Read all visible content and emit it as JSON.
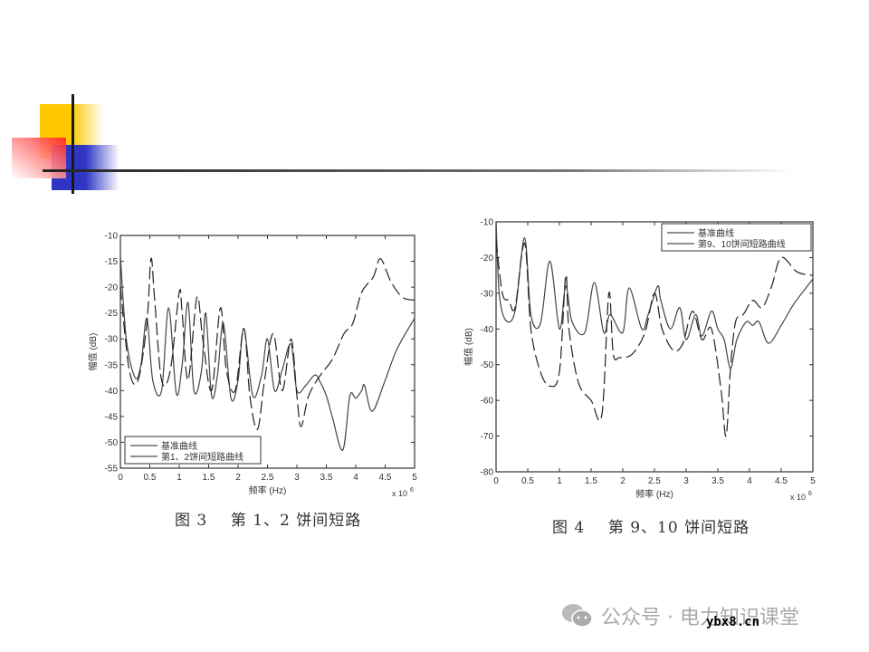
{
  "slide": {
    "decoration": {
      "yellow": "#ffcc00",
      "red": "#ff3333",
      "blue": "#3333cc",
      "line": "#333333"
    }
  },
  "figures": [
    {
      "caption": "图 3    第 1、2 饼间短路"
    },
    {
      "caption": "图 4    第 9、10 饼间短路"
    }
  ],
  "footer": {
    "account": "公众号 · 电力知识课堂",
    "watermark": "ybx8.cn"
  },
  "chart_data": [
    {
      "type": "line",
      "title": "",
      "xlabel": "频率 (Hz)",
      "x_multiplier": "x 10^6",
      "ylabel": "幅值 (dB)",
      "xlim": [
        0,
        5
      ],
      "ylim": [
        -55,
        -10
      ],
      "xticks": [
        "0",
        "0.5",
        "1",
        "1.5",
        "2",
        "2.5",
        "3",
        "3.5",
        "4",
        "4.5",
        "5"
      ],
      "yticks": [
        "-10",
        "-15",
        "-20",
        "-25",
        "-30",
        "-35",
        "-40",
        "-45",
        "-50",
        "-55"
      ],
      "grid": false,
      "legend_position": "lower left",
      "series": [
        {
          "name": "基准曲线",
          "style": "solid",
          "x": [
            0,
            0.1,
            0.25,
            0.35,
            0.45,
            0.55,
            0.7,
            0.82,
            0.95,
            1.05,
            1.15,
            1.25,
            1.38,
            1.45,
            1.55,
            1.65,
            1.75,
            1.88,
            2.0,
            2.1,
            2.25,
            2.4,
            2.5,
            2.62,
            2.75,
            2.9,
            3.0,
            3.15,
            3.3,
            3.38,
            3.5,
            3.6,
            3.78,
            3.9,
            4.0,
            4.1,
            4.15,
            4.28,
            4.5,
            4.7,
            5.0
          ],
          "y": [
            -14,
            -30,
            -37.5,
            -35,
            -26,
            -38,
            -40,
            -24,
            -40.5,
            -35,
            -23,
            -40,
            -36,
            -25,
            -41,
            -37,
            -27,
            -41.5,
            -38,
            -28,
            -41,
            -37,
            -30,
            -40,
            -36,
            -31,
            -40,
            -39,
            -37,
            -38,
            -41,
            -45,
            -51.5,
            -41,
            -41.5,
            -40,
            -39,
            -44,
            -38,
            -32,
            -26
          ]
        },
        {
          "name": "第1、2饼间短路曲线",
          "style": "dashed",
          "x": [
            0,
            0.15,
            0.3,
            0.45,
            0.52,
            0.58,
            0.7,
            0.85,
            1.0,
            1.05,
            1.15,
            1.3,
            1.4,
            1.55,
            1.7,
            1.8,
            1.95,
            2.1,
            2.2,
            2.33,
            2.45,
            2.6,
            2.75,
            2.9,
            3.0,
            3.07,
            3.2,
            3.4,
            3.6,
            3.8,
            3.95,
            4.1,
            4.3,
            4.42,
            4.6,
            4.8,
            5.0
          ],
          "y": [
            -20,
            -36,
            -38,
            -27,
            -14.5,
            -22,
            -38,
            -36,
            -21,
            -25,
            -38,
            -22,
            -30,
            -40,
            -24,
            -36,
            -40,
            -28,
            -41,
            -47.5,
            -38,
            -29,
            -40,
            -30,
            -41,
            -47,
            -41,
            -37,
            -34,
            -29,
            -27,
            -21,
            -18,
            -14.5,
            -19,
            -22,
            -22.5
          ]
        }
      ]
    },
    {
      "type": "line",
      "title": "",
      "xlabel": "频率 (Hz)",
      "x_multiplier": "x 10^6",
      "ylabel": "幅值 (dB)",
      "xlim": [
        0,
        5
      ],
      "ylim": [
        -80,
        -10
      ],
      "xticks": [
        "0",
        "0.5",
        "1",
        "1.5",
        "2",
        "2.5",
        "3",
        "3.5",
        "4",
        "4.5",
        "5"
      ],
      "yticks": [
        "-10",
        "-20",
        "-30",
        "-40",
        "-50",
        "-60",
        "-70",
        "-80"
      ],
      "grid": false,
      "legend_position": "upper right",
      "series": [
        {
          "name": "基准曲线",
          "style": "solid",
          "x": [
            0,
            0.05,
            0.15,
            0.3,
            0.45,
            0.55,
            0.7,
            0.85,
            1.0,
            1.1,
            1.2,
            1.4,
            1.55,
            1.7,
            1.8,
            2.0,
            2.1,
            2.3,
            2.4,
            2.55,
            2.6,
            2.75,
            2.9,
            3.0,
            3.15,
            3.25,
            3.4,
            3.5,
            3.6,
            3.7,
            3.8,
            3.95,
            4.05,
            4.15,
            4.3,
            4.5,
            4.7,
            5.0
          ],
          "y": [
            -10,
            -30,
            -37.5,
            -35,
            -14.5,
            -36,
            -38.5,
            -21,
            -40,
            -28,
            -38,
            -41,
            -27,
            -41,
            -36,
            -41,
            -28.5,
            -40,
            -36,
            -28,
            -32,
            -40,
            -34,
            -43,
            -36,
            -42,
            -35,
            -40,
            -43,
            -51,
            -43,
            -38,
            -39,
            -38,
            -44,
            -39,
            -33,
            -26
          ]
        },
        {
          "name": "第9、10饼间短路曲线",
          "style": "dashed",
          "x": [
            0,
            0.1,
            0.2,
            0.3,
            0.45,
            0.55,
            0.7,
            0.85,
            1.0,
            1.1,
            1.15,
            1.3,
            1.5,
            1.67,
            1.78,
            1.85,
            1.95,
            2.15,
            2.35,
            2.5,
            2.62,
            2.8,
            2.95,
            3.1,
            3.25,
            3.4,
            3.55,
            3.63,
            3.7,
            3.78,
            3.9,
            4.05,
            4.2,
            4.35,
            4.5,
            4.75,
            5.0
          ],
          "y": [
            -15,
            -30,
            -32,
            -34,
            -16,
            -40,
            -52,
            -56,
            -52,
            -25,
            -40,
            -55,
            -60,
            -64,
            -30,
            -47,
            -48,
            -47,
            -41,
            -30,
            -40,
            -46,
            -44,
            -35,
            -43,
            -40,
            -57,
            -70,
            -51,
            -38,
            -36,
            -32,
            -34,
            -28,
            -20,
            -24,
            -25
          ]
        }
      ]
    }
  ]
}
